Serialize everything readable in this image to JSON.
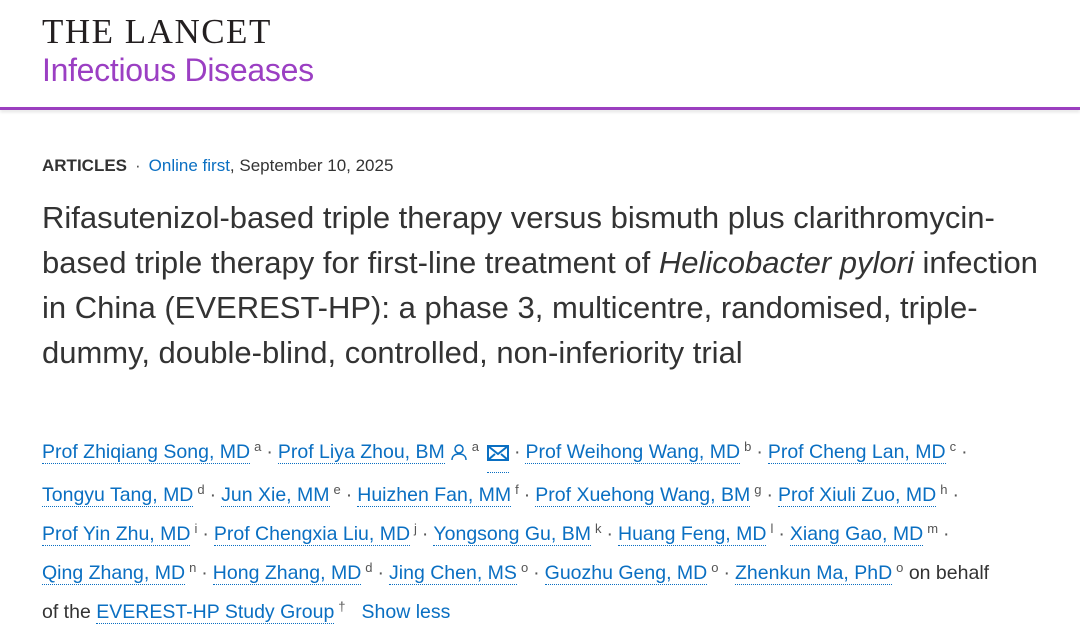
{
  "header": {
    "journal": "THE LANCET",
    "subtitle": "Infectious Diseases",
    "accent_color": "#9b3fbf"
  },
  "meta": {
    "type": "ARTICLES",
    "separator": "·",
    "status_link": "Online first",
    "date": ", September 10, 2025"
  },
  "title": {
    "part1": "Rifasutenizol-based triple therapy versus bismuth plus clarithromycin-based triple therapy for first-line treatment of ",
    "italic": "Helicobacter pylori",
    "part2": " infection in China (EVEREST-HP): a phase 3, multicentre, randomised, triple-dummy, double-blind, controlled, non-inferiority trial"
  },
  "authors": [
    {
      "name": "Prof Zhiqiang Song, MD",
      "sup": "a"
    },
    {
      "name": "Prof Liya Zhou, BM",
      "sup": "a",
      "person_icon": true,
      "email_icon": true
    },
    {
      "name": "Prof Weihong Wang, MD",
      "sup": "b"
    },
    {
      "name": "Prof Cheng Lan, MD",
      "sup": "c"
    },
    {
      "name": "Tongyu Tang, MD",
      "sup": "d"
    },
    {
      "name": "Jun Xie, MM",
      "sup": "e"
    },
    {
      "name": "Huizhen Fan, MM",
      "sup": "f"
    },
    {
      "name": "Prof Xuehong Wang, BM",
      "sup": "g"
    },
    {
      "name": "Prof Xiuli Zuo, MD",
      "sup": "h"
    },
    {
      "name": "Prof Yin Zhu, MD",
      "sup": "i"
    },
    {
      "name": "Prof Chengxia Liu, MD",
      "sup": "j"
    },
    {
      "name": "Yongsong Gu, BM",
      "sup": "k"
    },
    {
      "name": "Huang Feng, MD",
      "sup": "l"
    },
    {
      "name": "Xiang Gao, MD",
      "sup": "m"
    },
    {
      "name": "Qing Zhang, MD",
      "sup": "n"
    },
    {
      "name": "Hong Zhang, MD",
      "sup": "d"
    },
    {
      "name": "Jing Chen, MS",
      "sup": "o"
    },
    {
      "name": "Guozhu Geng, MD",
      "sup": "o"
    },
    {
      "name": "Zhenkun Ma, PhD",
      "sup": "o"
    }
  ],
  "group": {
    "prefix": "on behalf",
    "prefix2": "of the",
    "name": "EVEREST-HP Study Group",
    "sup": "†"
  },
  "show_less": "Show less"
}
